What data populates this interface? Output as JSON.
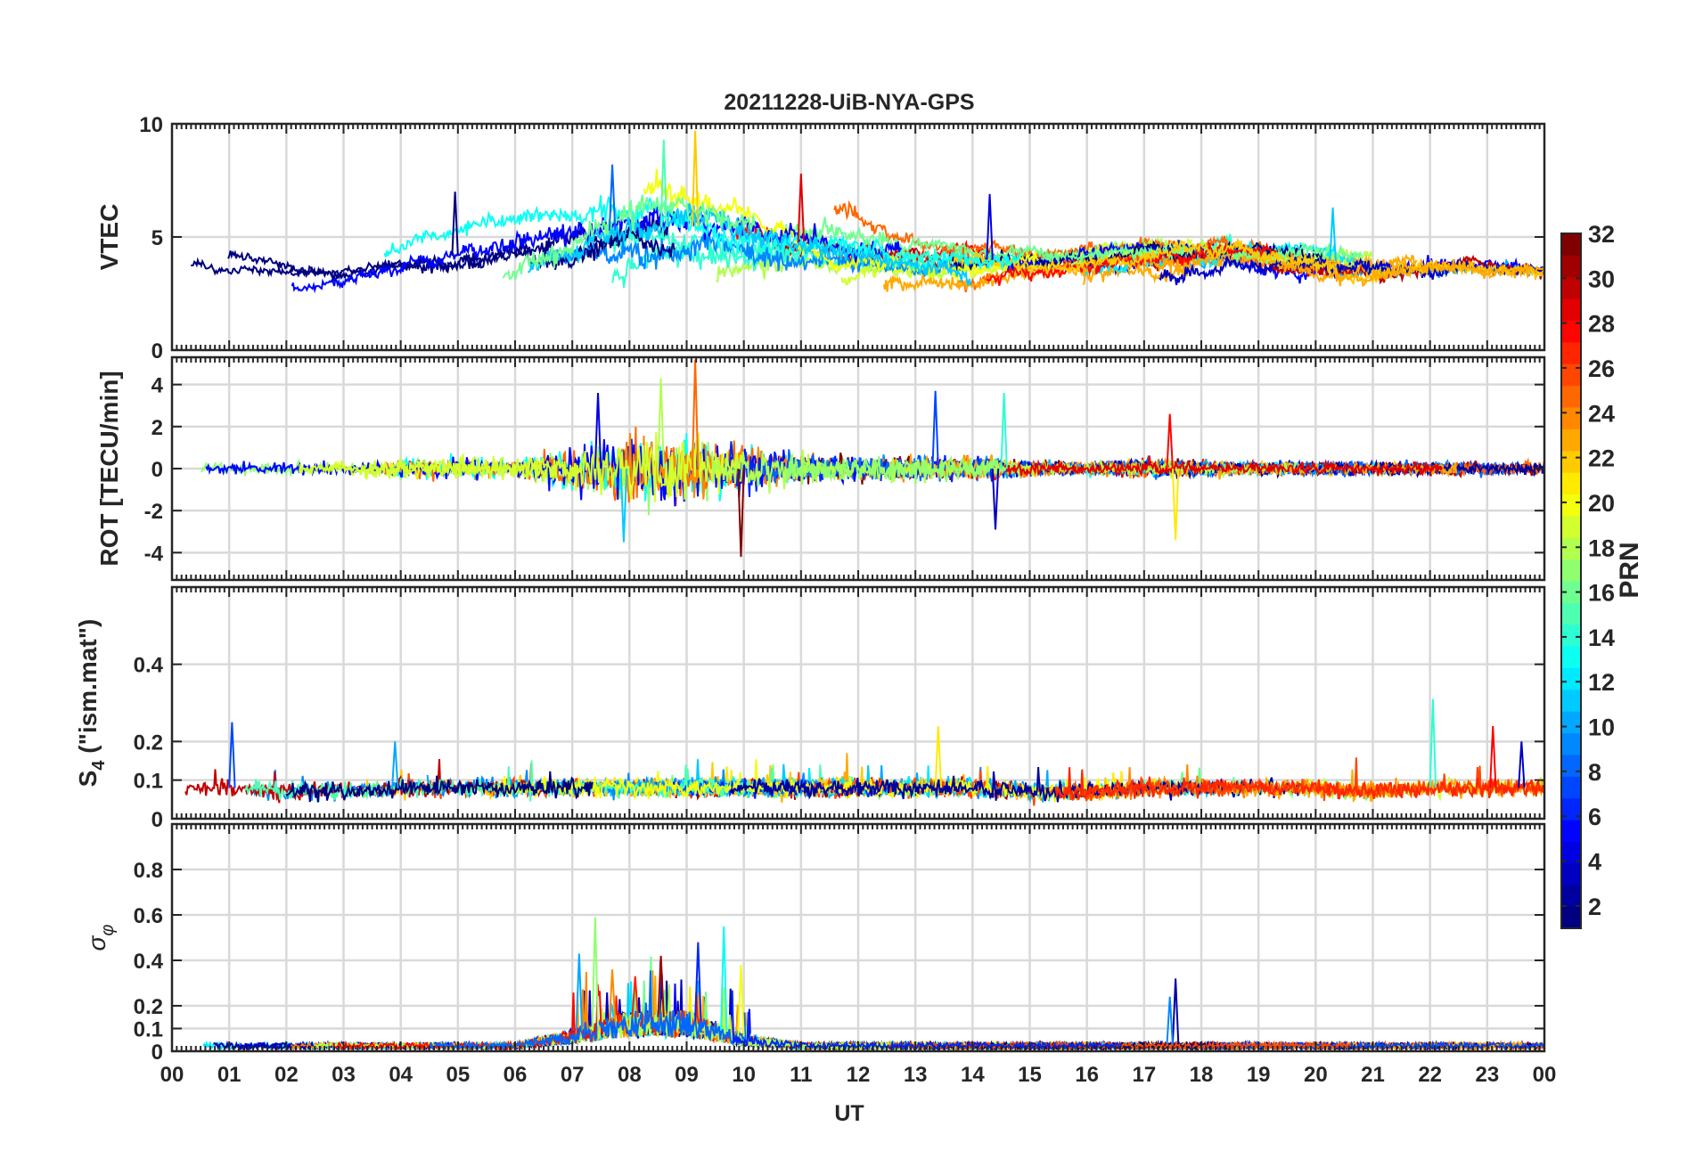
{
  "chart_data": {
    "type": "line",
    "title": "20211228-UiB-NYA-GPS",
    "xlabel": "UT",
    "xlim": [
      0,
      24
    ],
    "x_ticks": [
      "00",
      "01",
      "02",
      "03",
      "04",
      "05",
      "06",
      "07",
      "08",
      "09",
      "10",
      "11",
      "12",
      "13",
      "14",
      "15",
      "16",
      "17",
      "18",
      "19",
      "20",
      "21",
      "22",
      "23",
      "00"
    ],
    "grid": true,
    "colorbar": {
      "label": "PRN",
      "colormap": "jet",
      "range": [
        1,
        32
      ],
      "ticks": [
        "2",
        "4",
        "6",
        "8",
        "10",
        "12",
        "14",
        "16",
        "18",
        "20",
        "22",
        "24",
        "26",
        "28",
        "30",
        "32"
      ],
      "tick_values": [
        2,
        4,
        6,
        8,
        10,
        12,
        14,
        16,
        18,
        20,
        22,
        24,
        26,
        28,
        30,
        32
      ],
      "position": "right"
    },
    "panels": [
      {
        "id": "vtec",
        "ylabel": "VTEC",
        "ylim": [
          0,
          10
        ],
        "yticks": [
          "0",
          "5",
          "10"
        ],
        "ytick_values": [
          0,
          5,
          10
        ],
        "description_of_series": "one series per visible GPS PRN",
        "envelope": {
          "x": [
            0,
            1,
            2,
            3,
            4,
            5,
            6,
            7,
            8,
            9,
            10,
            11,
            12,
            13,
            14,
            15,
            16,
            17,
            18,
            19,
            20,
            21,
            22,
            23,
            24
          ],
          "baseline": [
            3.5,
            3.3,
            3.2,
            3.2,
            3.6,
            4.2,
            4.5,
            5.0,
            5.4,
            5.5,
            5.2,
            4.8,
            4.4,
            4.1,
            4.0,
            4.0,
            4.1,
            4.2,
            4.3,
            4.2,
            4.0,
            3.8,
            3.7,
            3.5,
            3.3
          ],
          "spread": [
            1.2,
            1.0,
            1.0,
            1.0,
            1.3,
            1.6,
            1.8,
            2.2,
            2.6,
            2.6,
            2.4,
            2.0,
            1.8,
            1.6,
            1.5,
            1.3,
            1.3,
            1.4,
            1.5,
            1.4,
            1.4,
            1.4,
            1.4,
            1.2,
            1.1
          ],
          "peak": [
            {
              "x": 4.95,
              "y": 7.0
            },
            {
              "x": 7.7,
              "y": 8.2
            },
            {
              "x": 8.6,
              "y": 9.3
            },
            {
              "x": 9.15,
              "y": 9.7
            },
            {
              "x": 11.0,
              "y": 7.8
            },
            {
              "x": 14.3,
              "y": 6.9
            },
            {
              "x": 20.3,
              "y": 6.3
            }
          ]
        }
      },
      {
        "id": "rot",
        "ylabel": "ROT [TECU/min]",
        "ylim": [
          -5.3,
          5.3
        ],
        "yticks": [
          "-4",
          "-2",
          "0",
          "2",
          "4"
        ],
        "ytick_values": [
          -4,
          -2,
          0,
          2,
          4
        ],
        "envelope": {
          "x": [
            0,
            1,
            2,
            3,
            4,
            5,
            6,
            7,
            8,
            9,
            10,
            11,
            12,
            13,
            14,
            15,
            16,
            17,
            18,
            19,
            20,
            21,
            22,
            23,
            24
          ],
          "amplitude": [
            0.5,
            0.5,
            0.5,
            0.5,
            0.8,
            0.9,
            0.8,
            2.0,
            2.8,
            2.8,
            1.8,
            1.2,
            1.0,
            1.0,
            0.9,
            0.6,
            0.5,
            0.7,
            0.6,
            0.5,
            0.5,
            0.5,
            0.5,
            0.5,
            0.5
          ],
          "spikes": [
            {
              "x": 7.45,
              "y": 3.6
            },
            {
              "x": 7.9,
              "y": -3.5
            },
            {
              "x": 8.55,
              "y": 4.3
            },
            {
              "x": 9.15,
              "y": 5.2
            },
            {
              "x": 9.95,
              "y": -4.2
            },
            {
              "x": 13.35,
              "y": 3.7
            },
            {
              "x": 14.55,
              "y": 3.6
            },
            {
              "x": 17.55,
              "y": -3.4
            },
            {
              "x": 17.45,
              "y": 2.6
            },
            {
              "x": 14.4,
              "y": -2.9
            }
          ]
        }
      },
      {
        "id": "s4",
        "ylabel": "S_4 (\"ism.mat\")",
        "ylabel_main": "S",
        "ylabel_sub": "4",
        "ylabel_rest": " (\"ism.mat\")",
        "ylim": [
          0,
          0.6
        ],
        "yticks": [
          "0",
          "0.1",
          "0.2",
          "0.4"
        ],
        "ytick_values": [
          0,
          0.1,
          0.2,
          0.4
        ],
        "envelope": {
          "x": [
            0,
            1,
            2,
            3,
            4,
            5,
            6,
            7,
            8,
            9,
            10,
            11,
            12,
            13,
            14,
            15,
            16,
            17,
            18,
            19,
            20,
            21,
            22,
            23,
            24
          ],
          "baseline": [
            0.08,
            0.08,
            0.07,
            0.07,
            0.08,
            0.08,
            0.08,
            0.08,
            0.08,
            0.08,
            0.08,
            0.08,
            0.08,
            0.08,
            0.08,
            0.07,
            0.07,
            0.08,
            0.08,
            0.08,
            0.08,
            0.07,
            0.08,
            0.08,
            0.08
          ],
          "spikes": [
            {
              "x": 1.05,
              "y": 0.25
            },
            {
              "x": 22.05,
              "y": 0.31
            },
            {
              "x": 13.4,
              "y": 0.24
            },
            {
              "x": 23.1,
              "y": 0.24
            },
            {
              "x": 23.6,
              "y": 0.2
            },
            {
              "x": 3.9,
              "y": 0.2
            }
          ]
        }
      },
      {
        "id": "sigma_phi",
        "ylabel": "σ_φ",
        "ylabel_main": "σ",
        "ylabel_sub": "φ",
        "ylim": [
          0,
          1.0
        ],
        "yticks": [
          "0",
          "0.1",
          "0.2",
          "0.4",
          "0.6",
          "0.8"
        ],
        "ytick_values": [
          0,
          0.1,
          0.2,
          0.4,
          0.6,
          0.8
        ],
        "envelope": {
          "x": [
            0,
            1,
            2,
            3,
            4,
            5,
            6,
            7,
            8,
            9,
            10,
            11,
            12,
            13,
            14,
            15,
            16,
            17,
            18,
            19,
            20,
            21,
            22,
            23,
            24
          ],
          "baseline": [
            0.03,
            0.03,
            0.03,
            0.03,
            0.03,
            0.03,
            0.03,
            0.08,
            0.15,
            0.15,
            0.06,
            0.03,
            0.03,
            0.03,
            0.03,
            0.03,
            0.03,
            0.03,
            0.03,
            0.03,
            0.03,
            0.03,
            0.03,
            0.03,
            0.03
          ],
          "spikes": [
            {
              "x": 7.12,
              "y": 0.43
            },
            {
              "x": 7.4,
              "y": 0.59
            },
            {
              "x": 7.7,
              "y": 0.36
            },
            {
              "x": 8.55,
              "y": 0.42
            },
            {
              "x": 9.2,
              "y": 0.48
            },
            {
              "x": 9.65,
              "y": 0.55
            },
            {
              "x": 9.95,
              "y": 0.38
            },
            {
              "x": 8.1,
              "y": 0.33
            },
            {
              "x": 17.55,
              "y": 0.32
            },
            {
              "x": 17.45,
              "y": 0.24
            }
          ]
        }
      }
    ]
  }
}
